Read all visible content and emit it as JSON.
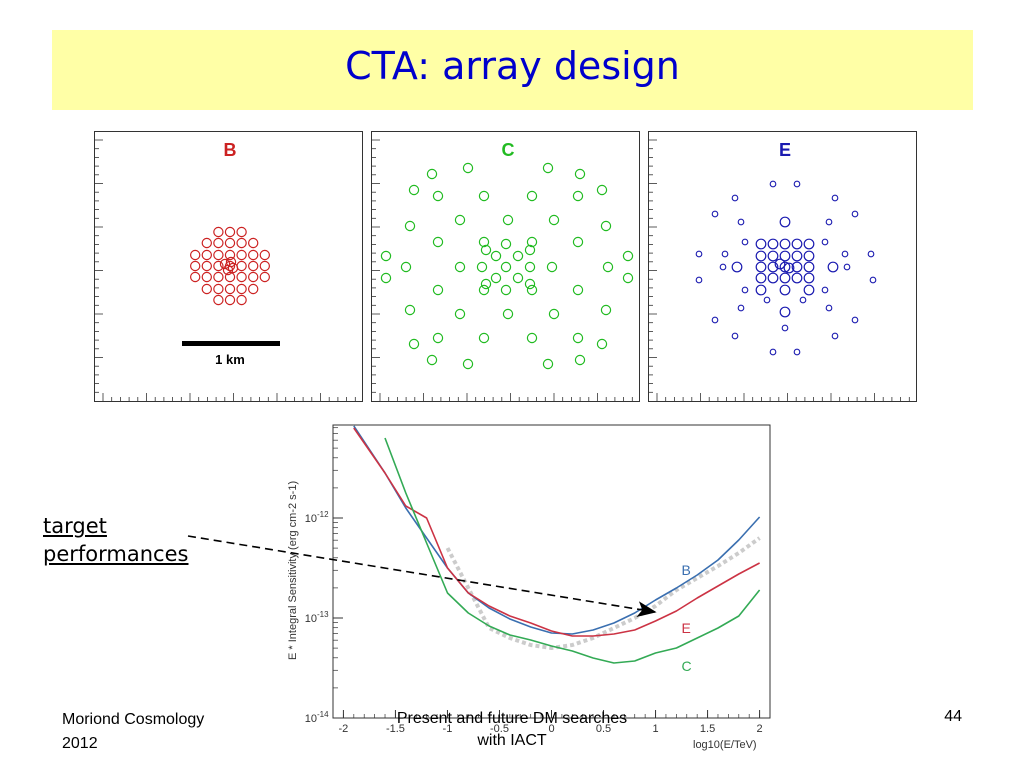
{
  "title": "CTA: array design",
  "colors": {
    "title_bg": "#ffffa6",
    "title_text": "#0000cc",
    "B": "#cc2222",
    "C": "#22bb22",
    "E": "#1a1ab0"
  },
  "array_panels": [
    {
      "label": "B",
      "color": "#cc2222",
      "scale_bar_label": "1 km"
    },
    {
      "label": "C",
      "color": "#22bb22"
    },
    {
      "label": "E",
      "color": "#1a1ab0"
    }
  ],
  "annotation": {
    "line1": "target ",
    "line2": "performances"
  },
  "footer": {
    "left_line1": "Moriond Cosmology",
    "left_line2": "2012",
    "center_line1": "Present and future DM searches",
    "center_line2": "with IACT",
    "page": "44"
  },
  "chart_data": {
    "type": "line",
    "xlabel": "log10(E/TeV)",
    "ylabel": "E * Integral Sensitivity (erg cm-2 s-1)",
    "ylabel_sup": "-2 s-1)",
    "xlim": [
      -2.1,
      2.1
    ],
    "ylim_log10": [
      -14,
      -11.07
    ],
    "x_ticks": [
      "-2",
      "-1.5",
      "-1",
      "-0.5",
      "0",
      "0.5",
      "1",
      "1.5",
      "2"
    ],
    "x_tick_values": [
      -2,
      -1.5,
      -1,
      -0.5,
      0,
      0.5,
      1,
      1.5,
      2
    ],
    "y_ticks": [
      "10",
      "10",
      "10"
    ],
    "y_tick_exponents": [
      "-14",
      "-13",
      "-12"
    ],
    "y_tick_values_log10": [
      -14,
      -13,
      -12
    ],
    "series": [
      {
        "name": "B",
        "color": "#3a6fb0",
        "label_x": 1.25,
        "label_log10y": -12.52,
        "x": [
          -1.9,
          -1.6,
          -1.4,
          -1.2,
          -1.0,
          -0.8,
          -0.6,
          -0.4,
          -0.2,
          0.0,
          0.2,
          0.4,
          0.6,
          0.8,
          1.0,
          1.2,
          1.4,
          1.6,
          1.8,
          2.0
        ],
        "log10y": [
          -11.08,
          -11.55,
          -11.9,
          -12.2,
          -12.5,
          -12.75,
          -12.9,
          -13.01,
          -13.09,
          -13.15,
          -13.16,
          -13.12,
          -13.05,
          -12.95,
          -12.82,
          -12.7,
          -12.57,
          -12.42,
          -12.22,
          -11.99
        ]
      },
      {
        "name": "E",
        "color": "#cc3344",
        "label_x": 1.25,
        "label_log10y": -13.1,
        "x": [
          -1.9,
          -1.6,
          -1.4,
          -1.2,
          -1.0,
          -0.8,
          -0.6,
          -0.4,
          -0.2,
          0.0,
          0.2,
          0.4,
          0.6,
          0.8,
          1.0,
          1.2,
          1.4,
          1.6,
          1.8,
          2.0
        ],
        "log10y": [
          -11.1,
          -11.55,
          -11.88,
          -12.0,
          -12.5,
          -12.75,
          -12.88,
          -12.98,
          -13.05,
          -13.13,
          -13.18,
          -13.18,
          -13.16,
          -13.12,
          -13.03,
          -12.93,
          -12.8,
          -12.68,
          -12.56,
          -12.45
        ]
      },
      {
        "name": "C",
        "color": "#33aa55",
        "label_x": 1.25,
        "label_log10y": -13.48,
        "x": [
          -1.6,
          -1.4,
          -1.2,
          -1.0,
          -0.8,
          -0.6,
          -0.4,
          -0.2,
          0.0,
          0.2,
          0.4,
          0.6,
          0.8,
          1.0,
          1.2,
          1.4,
          1.6,
          1.8,
          2.0
        ],
        "log10y": [
          -11.2,
          -11.75,
          -12.25,
          -12.75,
          -12.95,
          -13.08,
          -13.17,
          -13.22,
          -13.28,
          -13.33,
          -13.4,
          -13.45,
          -13.43,
          -13.35,
          -13.3,
          -13.2,
          -13.1,
          -12.98,
          -12.72
        ]
      },
      {
        "name": "target",
        "color": "#cccccc",
        "dashed": true,
        "x": [
          -1.0,
          -0.8,
          -0.6,
          -0.4,
          -0.2,
          0.0,
          0.2,
          0.4,
          0.6,
          0.8,
          1.0,
          1.2,
          1.4,
          1.6,
          1.8,
          2.0
        ],
        "log10y": [
          -12.3,
          -12.7,
          -13.1,
          -13.2,
          -13.27,
          -13.3,
          -13.27,
          -13.2,
          -13.1,
          -13.0,
          -12.88,
          -12.72,
          -12.6,
          -12.48,
          -12.35,
          -12.2
        ]
      }
    ]
  }
}
